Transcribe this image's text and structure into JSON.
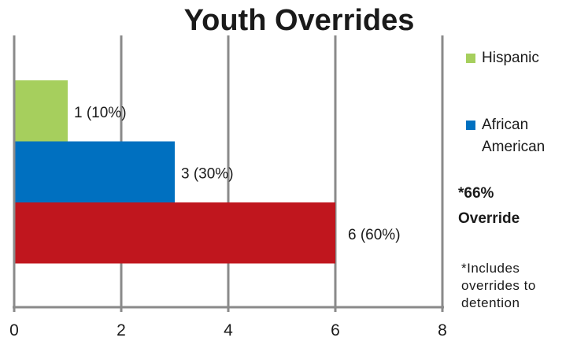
{
  "chart_data": {
    "type": "bar",
    "orientation": "horizontal",
    "title": "Youth Overrides",
    "xlim": [
      0,
      8
    ],
    "x_ticks": [
      "0",
      "2",
      "4",
      "6",
      "8"
    ],
    "grid": true,
    "legend_position": "right",
    "series": [
      {
        "name": "Hispanic",
        "value": 1,
        "label": "1 (10%)",
        "color": "#a6cf5d"
      },
      {
        "name": "African American",
        "value": 3,
        "label": "3 (30%)",
        "color": "#0070c0"
      },
      {
        "name": "",
        "value": 6,
        "label": "6 (60%)",
        "color": "#c0161e"
      }
    ],
    "annotations": {
      "override_note_line1": "*66%",
      "override_note_line2": "Override",
      "includes_note_line1": "*Includes",
      "includes_note_line2": "overrides to",
      "includes_note_line3": "detention"
    }
  }
}
